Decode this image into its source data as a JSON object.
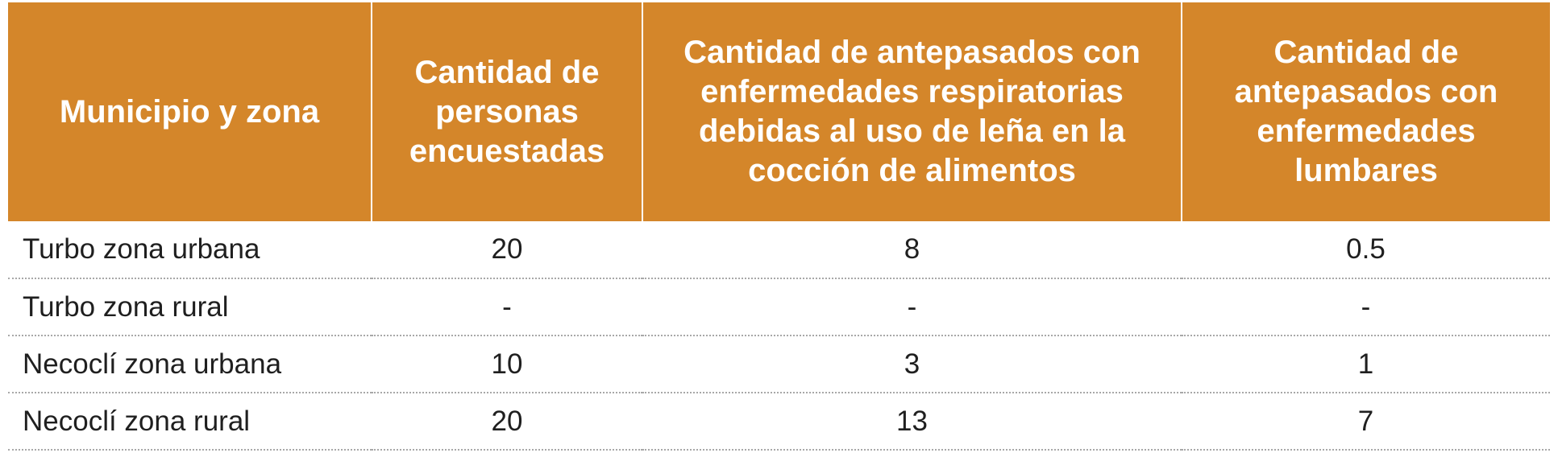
{
  "table": {
    "headers": [
      "Municipio y zona",
      "Cantidad de personas encuestadas",
      "Cantidad de antepasados con enfermedades respiratorias debidas al uso de leña en la cocción de alimentos",
      "Cantidad de antepasados con enfermedades lumbares"
    ],
    "rows": [
      [
        "Turbo zona urbana",
        "20",
        "8",
        "0.5"
      ],
      [
        "Turbo zona rural",
        "-",
        "-",
        "-"
      ],
      [
        "Necoclí zona urbana",
        "10",
        "3",
        "1"
      ],
      [
        "Necoclí zona rural",
        "20",
        "13",
        "7"
      ]
    ],
    "header_bg_color": "#d4862a",
    "header_text_color": "#ffffff"
  }
}
